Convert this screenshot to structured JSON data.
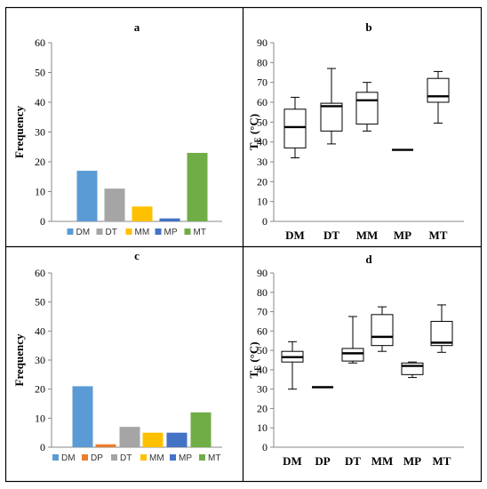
{
  "colors": {
    "DM": "#5b9bd5",
    "DP": "#ed7d31",
    "DT": "#a5a5a5",
    "MM": "#ffc000",
    "MP": "#4472c4",
    "MT": "#70ad47"
  },
  "chart_data": [
    {
      "panel": "a",
      "type": "bar",
      "title": "a",
      "ylabel": "Frequency",
      "ylim": [
        0,
        60
      ],
      "yticks": [
        0,
        10,
        20,
        30,
        40,
        50,
        60
      ],
      "categories": [
        "DM",
        "DT",
        "MM",
        "MP",
        "MT"
      ],
      "values": [
        17,
        11,
        5,
        1,
        23
      ],
      "legend": [
        "DM",
        "DT",
        "MM",
        "MP",
        "MT"
      ],
      "legend_position": "bottom"
    },
    {
      "panel": "b",
      "type": "box",
      "title": "b",
      "ylabel_main": "T",
      "ylabel_sub": "E",
      "ylabel_unit": " (°C)",
      "ylim": [
        0,
        90
      ],
      "yticks": [
        0,
        10,
        20,
        30,
        40,
        50,
        60,
        70,
        80,
        90
      ],
      "categories": [
        "DM",
        "DT",
        "MM",
        "MP",
        "MT"
      ],
      "boxes": [
        {
          "min": 32,
          "q1": 37,
          "median": 47.5,
          "q3": 56.5,
          "max": 62.5
        },
        {
          "min": 39,
          "q1": 45.5,
          "median": 58,
          "q3": 59.5,
          "max": 77
        },
        {
          "min": 45.5,
          "q1": 49,
          "median": 61,
          "q3": 65,
          "max": 70
        },
        {
          "min": 36,
          "q1": 36,
          "median": 36,
          "q3": 36,
          "max": 36
        },
        {
          "min": 49.5,
          "q1": 60,
          "median": 63,
          "q3": 72,
          "max": 75.5
        }
      ]
    },
    {
      "panel": "c",
      "type": "bar",
      "title": "c",
      "ylabel": "Frequency",
      "ylim": [
        0,
        60
      ],
      "yticks": [
        0,
        10,
        20,
        30,
        40,
        50,
        60
      ],
      "categories": [
        "DM",
        "DP",
        "DT",
        "MM",
        "MP",
        "MT"
      ],
      "values": [
        21,
        1,
        7,
        5,
        5,
        12
      ],
      "legend": [
        "DM",
        "DP",
        "DT",
        "MM",
        "MP",
        "MT"
      ],
      "legend_position": "bottom"
    },
    {
      "panel": "d",
      "type": "box",
      "title": "d",
      "ylabel_main": "T",
      "ylabel_sub": "E",
      "ylabel_unit": " (°C)",
      "ylim": [
        0,
        90
      ],
      "yticks": [
        0,
        10,
        20,
        30,
        40,
        50,
        60,
        70,
        80,
        90
      ],
      "categories": [
        "DM",
        "DP",
        "DT",
        "MM",
        "MP",
        "MT"
      ],
      "boxes": [
        {
          "min": 30,
          "q1": 44,
          "median": 46.5,
          "q3": 49.5,
          "max": 54.5
        },
        {
          "min": 31,
          "q1": 31,
          "median": 31,
          "q3": 31,
          "max": 31
        },
        {
          "min": 43.5,
          "q1": 44.5,
          "median": 48.5,
          "q3": 51,
          "max": 67.5
        },
        {
          "min": 49.5,
          "q1": 52.5,
          "median": 57,
          "q3": 68.5,
          "max": 72.5
        },
        {
          "min": 36,
          "q1": 37.5,
          "median": 42,
          "q3": 43.5,
          "max": 44
        },
        {
          "min": 49,
          "q1": 52.5,
          "median": 54,
          "q3": 65,
          "max": 73.5
        }
      ]
    }
  ]
}
